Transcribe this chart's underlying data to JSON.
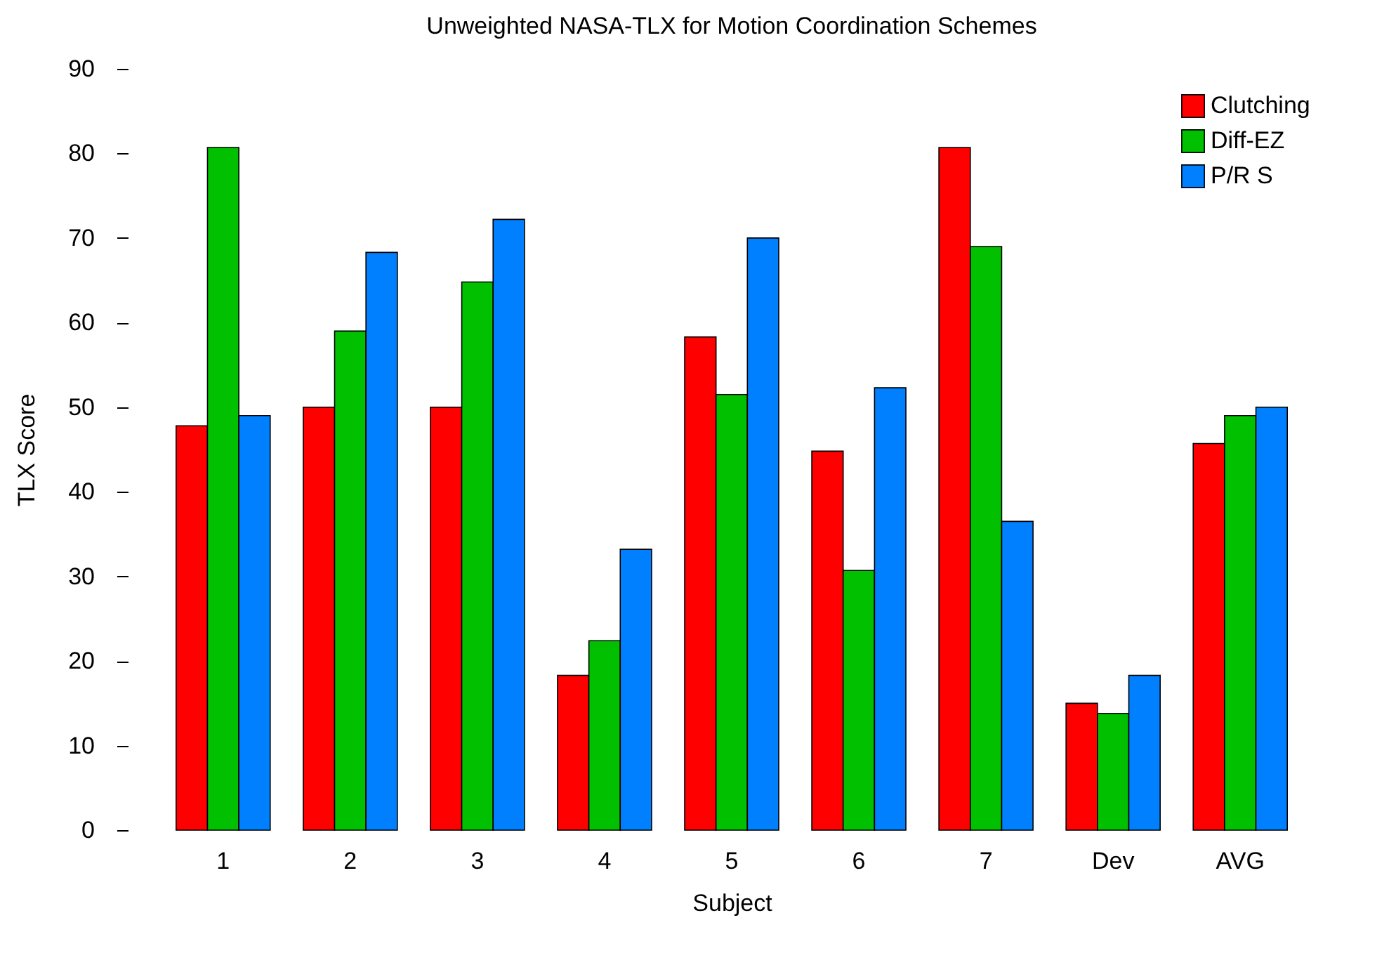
{
  "chart_data": {
    "type": "bar",
    "title": "Unweighted NASA-TLX for Motion Coordination Schemes",
    "xlabel": "Subject",
    "ylabel": "TLX Score",
    "categories": [
      "1",
      "2",
      "3",
      "4",
      "5",
      "6",
      "7",
      "Dev",
      "AVG"
    ],
    "series": [
      {
        "name": "Clutching",
        "color": "#ff0000",
        "values": [
          47.8,
          50,
          50,
          18.3,
          58.3,
          44.8,
          80.7,
          15,
          45.7
        ]
      },
      {
        "name": "Diff-EZ",
        "color": "#00c000",
        "values": [
          80.7,
          59,
          64.8,
          22.4,
          51.5,
          30.7,
          69,
          13.8,
          49
        ]
      },
      {
        "name": "P/R S",
        "color": "#0080ff",
        "values": [
          49,
          68.3,
          72.2,
          33.2,
          70,
          52.3,
          36.5,
          18.3,
          50
        ]
      }
    ],
    "ylim": [
      0,
      90
    ],
    "yticks": [
      0,
      10,
      20,
      30,
      40,
      50,
      60,
      70,
      80,
      90
    ],
    "grid": false,
    "legend": "top right"
  }
}
